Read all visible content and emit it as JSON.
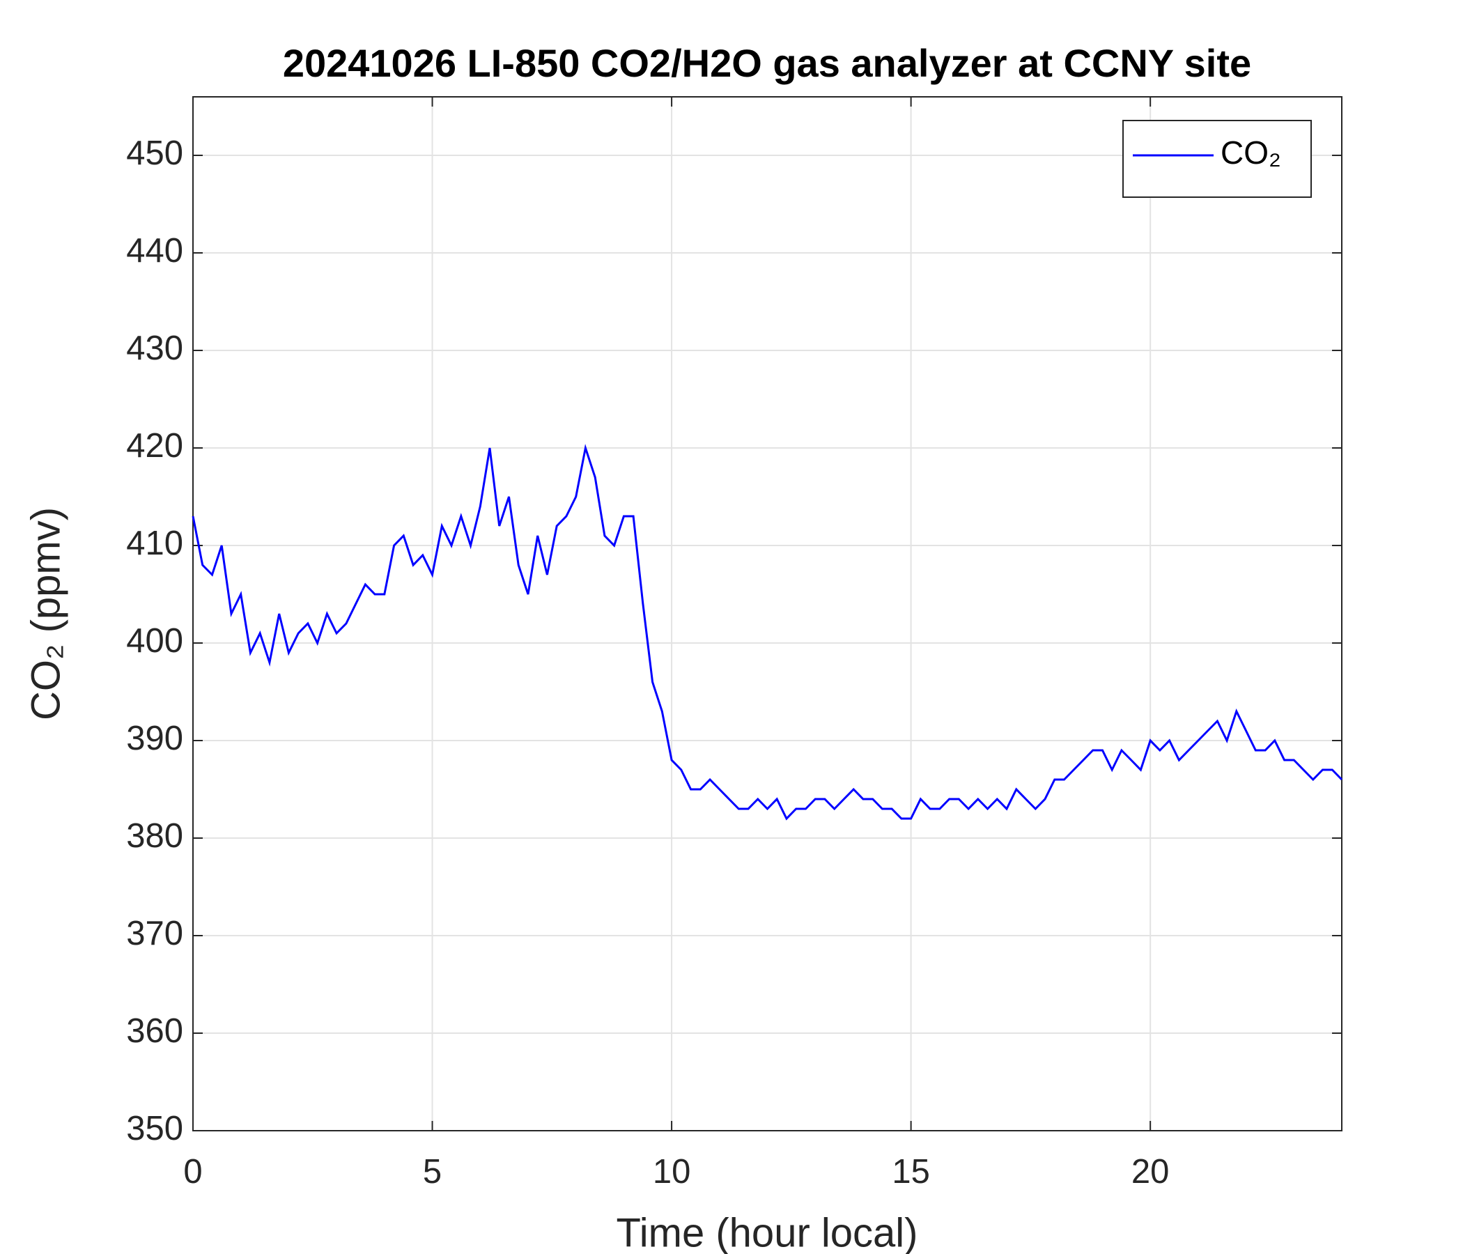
{
  "chart_data": {
    "type": "line",
    "title": "20241026 LI-850 CO2/H2O gas analyzer at CCNY site",
    "x_label": "Time (hour local)",
    "y_label": "CO₂ (ppmv)",
    "xlim": [
      0,
      24
    ],
    "ylim": [
      350,
      456
    ],
    "xticks": [
      0,
      5,
      10,
      15,
      20
    ],
    "yticks": [
      350,
      360,
      370,
      380,
      390,
      400,
      410,
      420,
      430,
      440,
      450
    ],
    "grid": true,
    "legend": "upper right",
    "x": [
      0,
      0.2,
      0.4,
      0.6,
      0.8,
      1,
      1.2,
      1.4,
      1.6,
      1.8,
      2,
      2.2,
      2.4,
      2.6,
      2.8,
      3,
      3.2,
      3.4,
      3.6,
      3.8,
      4,
      4.2,
      4.4,
      4.6,
      4.8,
      5,
      5.2,
      5.4,
      5.6,
      5.8,
      6,
      6.2,
      6.4,
      6.6,
      6.8,
      7,
      7.2,
      7.4,
      7.6,
      7.8,
      8,
      8.2,
      8.4,
      8.6,
      8.8,
      9,
      9.2,
      9.4,
      9.6,
      9.8,
      10,
      10.2,
      10.4,
      10.6,
      10.8,
      11,
      11.2,
      11.4,
      11.6,
      11.8,
      12,
      12.2,
      12.4,
      12.6,
      12.8,
      13,
      13.2,
      13.4,
      13.6,
      13.8,
      14,
      14.2,
      14.4,
      14.6,
      14.8,
      15,
      15.2,
      15.4,
      15.6,
      15.8,
      16,
      16.2,
      16.4,
      16.6,
      16.8,
      17,
      17.2,
      17.4,
      17.6,
      17.8,
      18,
      18.2,
      18.4,
      18.6,
      18.8,
      19,
      19.2,
      19.4,
      19.6,
      19.8,
      20,
      20.2,
      20.4,
      20.6,
      20.8,
      21,
      21.2,
      21.4,
      21.6,
      21.8,
      22,
      22.2,
      22.4,
      22.6,
      22.8,
      23,
      23.2,
      23.4,
      23.6,
      23.8,
      24
    ],
    "series": [
      {
        "name": "CO₂",
        "color": "#0000ff",
        "values": [
          413,
          408,
          407,
          410,
          403,
          405,
          399,
          401,
          398,
          403,
          399,
          401,
          402,
          400,
          403,
          401,
          402,
          404,
          406,
          405,
          405,
          410,
          411,
          408,
          409,
          407,
          412,
          410,
          413,
          410,
          414,
          420,
          412,
          415,
          408,
          405,
          411,
          407,
          412,
          413,
          415,
          420,
          417,
          411,
          410,
          413,
          413,
          404,
          396,
          393,
          388,
          387,
          385,
          385,
          386,
          385,
          384,
          383,
          383,
          384,
          383,
          384,
          382,
          383,
          383,
          384,
          384,
          383,
          384,
          385,
          384,
          384,
          383,
          383,
          382,
          382,
          384,
          383,
          383,
          384,
          384,
          383,
          384,
          383,
          384,
          383,
          385,
          384,
          383,
          384,
          386,
          386,
          387,
          388,
          389,
          389,
          387,
          389,
          388,
          387,
          390,
          389,
          390,
          388,
          389,
          390,
          391,
          392,
          390,
          393,
          391,
          389,
          389,
          390,
          388,
          388,
          387,
          386,
          387,
          387,
          386
        ]
      }
    ]
  }
}
